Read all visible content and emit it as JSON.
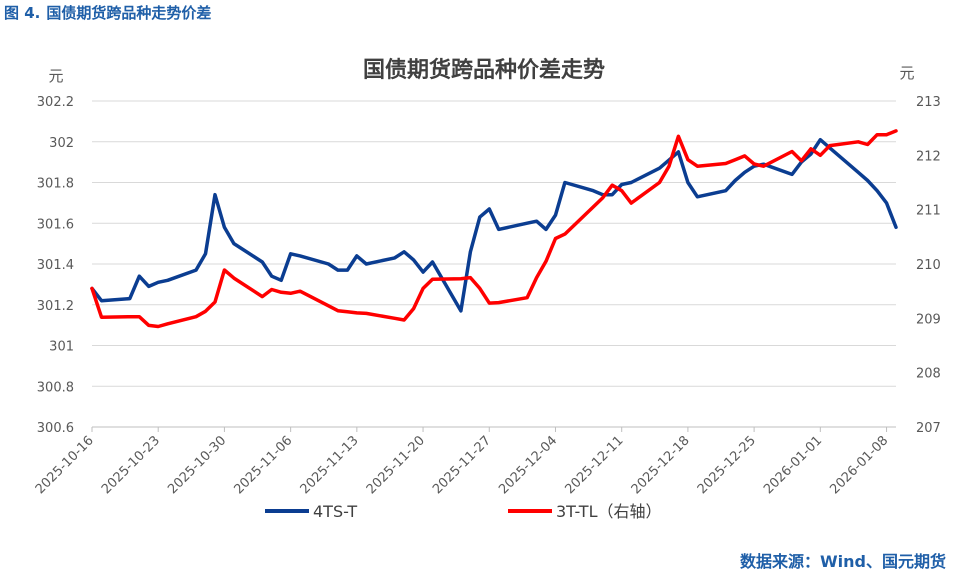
{
  "figure": {
    "number": "图 4.",
    "caption": "国债期货跨品种走势价差",
    "source": "数据来源：Wind、国元期货"
  },
  "chart_data": {
    "type": "line",
    "title": "国债期货跨品种价差走势",
    "y_left": {
      "unit": "元",
      "lim": [
        300.6,
        302.2
      ],
      "ticks": [
        "302.2",
        "302",
        "301.8",
        "301.6",
        "301.4",
        "301.2",
        "301",
        "300.8",
        "300.6"
      ]
    },
    "y_right": {
      "unit": "元",
      "lim": [
        207,
        213
      ],
      "ticks": [
        "213",
        "212",
        "211",
        "210",
        "209",
        "208",
        "207"
      ]
    },
    "x_ticks": [
      "2025-10-16",
      "2025-10-23",
      "2025-10-30",
      "2025-11-06",
      "2025-11-13",
      "2025-11-20",
      "2025-11-27",
      "2025-12-04",
      "2025-12-11",
      "2025-12-18",
      "2025-12-25",
      "2026-01-01",
      "2026-01-08"
    ],
    "x_range": [
      "2025-10-16",
      "2026-01-09"
    ],
    "grid": true,
    "legend_position": "bottom",
    "series": [
      {
        "name": "4TS-T",
        "axis": "left",
        "color": "#0b3d91",
        "points": [
          [
            "2025-10-16",
            301.28
          ],
          [
            "2025-10-17",
            301.22
          ],
          [
            "2025-10-20",
            301.23
          ],
          [
            "2025-10-21",
            301.34
          ],
          [
            "2025-10-22",
            301.29
          ],
          [
            "2025-10-23",
            301.31
          ],
          [
            "2025-10-24",
            301.32
          ],
          [
            "2025-10-27",
            301.37
          ],
          [
            "2025-10-28",
            301.45
          ],
          [
            "2025-10-29",
            301.74
          ],
          [
            "2025-10-30",
            301.58
          ],
          [
            "2025-10-31",
            301.5
          ],
          [
            "2025-11-03",
            301.41
          ],
          [
            "2025-11-04",
            301.34
          ],
          [
            "2025-11-05",
            301.32
          ],
          [
            "2025-11-06",
            301.45
          ],
          [
            "2025-11-07",
            301.44
          ],
          [
            "2025-11-10",
            301.4
          ],
          [
            "2025-11-11",
            301.37
          ],
          [
            "2025-11-12",
            301.37
          ],
          [
            "2025-11-13",
            301.44
          ],
          [
            "2025-11-14",
            301.4
          ],
          [
            "2025-11-17",
            301.43
          ],
          [
            "2025-11-18",
            301.46
          ],
          [
            "2025-11-19",
            301.42
          ],
          [
            "2025-11-20",
            301.36
          ],
          [
            "2025-11-21",
            301.41
          ],
          [
            "2025-11-24",
            301.17
          ],
          [
            "2025-11-25",
            301.46
          ],
          [
            "2025-11-26",
            301.63
          ],
          [
            "2025-11-27",
            301.67
          ],
          [
            "2025-11-28",
            301.57
          ],
          [
            "2025-12-01",
            301.6
          ],
          [
            "2025-12-02",
            301.61
          ],
          [
            "2025-12-03",
            301.57
          ],
          [
            "2025-12-04",
            301.64
          ],
          [
            "2025-12-05",
            301.8
          ],
          [
            "2025-12-08",
            301.76
          ],
          [
            "2025-12-09",
            301.74
          ],
          [
            "2025-12-10",
            301.74
          ],
          [
            "2025-12-11",
            301.79
          ],
          [
            "2025-12-12",
            301.8
          ],
          [
            "2025-12-15",
            301.87
          ],
          [
            "2025-12-16",
            301.91
          ],
          [
            "2025-12-17",
            301.95
          ],
          [
            "2025-12-18",
            301.8
          ],
          [
            "2025-12-19",
            301.73
          ],
          [
            "2025-12-22",
            301.76
          ],
          [
            "2025-12-23",
            301.81
          ],
          [
            "2025-12-24",
            301.85
          ],
          [
            "2025-12-25",
            301.88
          ],
          [
            "2025-12-26",
            301.89
          ],
          [
            "2025-12-29",
            301.84
          ],
          [
            "2025-12-30",
            301.9
          ],
          [
            "2025-12-31",
            301.94
          ],
          [
            "2026-01-01",
            302.01
          ],
          [
            "2026-01-02",
            301.97
          ],
          [
            "2026-01-05",
            301.85
          ],
          [
            "2026-01-06",
            301.81
          ],
          [
            "2026-01-07",
            301.76
          ],
          [
            "2026-01-08",
            301.7
          ],
          [
            "2026-01-09",
            301.58
          ]
        ]
      },
      {
        "name": "3T-TL（右轴）",
        "axis": "right",
        "color": "#ff0000",
        "points": [
          [
            "2025-10-16",
            209.55
          ],
          [
            "2025-10-17",
            209.02
          ],
          [
            "2025-10-20",
            209.03
          ],
          [
            "2025-10-21",
            209.03
          ],
          [
            "2025-10-22",
            208.87
          ],
          [
            "2025-10-23",
            208.85
          ],
          [
            "2025-10-24",
            208.9
          ],
          [
            "2025-10-27",
            209.03
          ],
          [
            "2025-10-28",
            209.13
          ],
          [
            "2025-10-29",
            209.3
          ],
          [
            "2025-10-30",
            209.89
          ],
          [
            "2025-10-31",
            209.74
          ],
          [
            "2025-11-03",
            209.4
          ],
          [
            "2025-11-04",
            209.53
          ],
          [
            "2025-11-05",
            209.48
          ],
          [
            "2025-11-06",
            209.46
          ],
          [
            "2025-11-07",
            209.5
          ],
          [
            "2025-11-10",
            209.23
          ],
          [
            "2025-11-11",
            209.14
          ],
          [
            "2025-11-12",
            209.12
          ],
          [
            "2025-11-13",
            209.1
          ],
          [
            "2025-11-14",
            209.09
          ],
          [
            "2025-11-17",
            209.0
          ],
          [
            "2025-11-18",
            208.97
          ],
          [
            "2025-11-19",
            209.18
          ],
          [
            "2025-11-20",
            209.55
          ],
          [
            "2025-11-21",
            209.72
          ],
          [
            "2025-11-24",
            209.73
          ],
          [
            "2025-11-25",
            209.75
          ],
          [
            "2025-11-26",
            209.55
          ],
          [
            "2025-11-27",
            209.28
          ],
          [
            "2025-11-28",
            209.29
          ],
          [
            "2025-12-01",
            209.38
          ],
          [
            "2025-12-02",
            209.75
          ],
          [
            "2025-12-03",
            210.05
          ],
          [
            "2025-12-04",
            210.47
          ],
          [
            "2025-12-05",
            210.55
          ],
          [
            "2025-12-08",
            211.05
          ],
          [
            "2025-12-09",
            211.22
          ],
          [
            "2025-12-10",
            211.45
          ],
          [
            "2025-12-11",
            211.35
          ],
          [
            "2025-12-12",
            211.12
          ],
          [
            "2025-12-15",
            211.5
          ],
          [
            "2025-12-16",
            211.8
          ],
          [
            "2025-12-17",
            212.35
          ],
          [
            "2025-12-18",
            211.92
          ],
          [
            "2025-12-19",
            211.8
          ],
          [
            "2025-12-22",
            211.85
          ],
          [
            "2025-12-23",
            211.92
          ],
          [
            "2025-12-24",
            211.99
          ],
          [
            "2025-12-25",
            211.84
          ],
          [
            "2025-12-26",
            211.8
          ],
          [
            "2025-12-29",
            212.07
          ],
          [
            "2025-12-30",
            211.9
          ],
          [
            "2025-12-31",
            212.12
          ],
          [
            "2026-01-01",
            212.0
          ],
          [
            "2026-01-02",
            212.18
          ],
          [
            "2026-01-05",
            212.25
          ],
          [
            "2026-01-06",
            212.2
          ],
          [
            "2026-01-07",
            212.38
          ],
          [
            "2026-01-08",
            212.38
          ],
          [
            "2026-01-09",
            212.45
          ]
        ]
      }
    ]
  }
}
